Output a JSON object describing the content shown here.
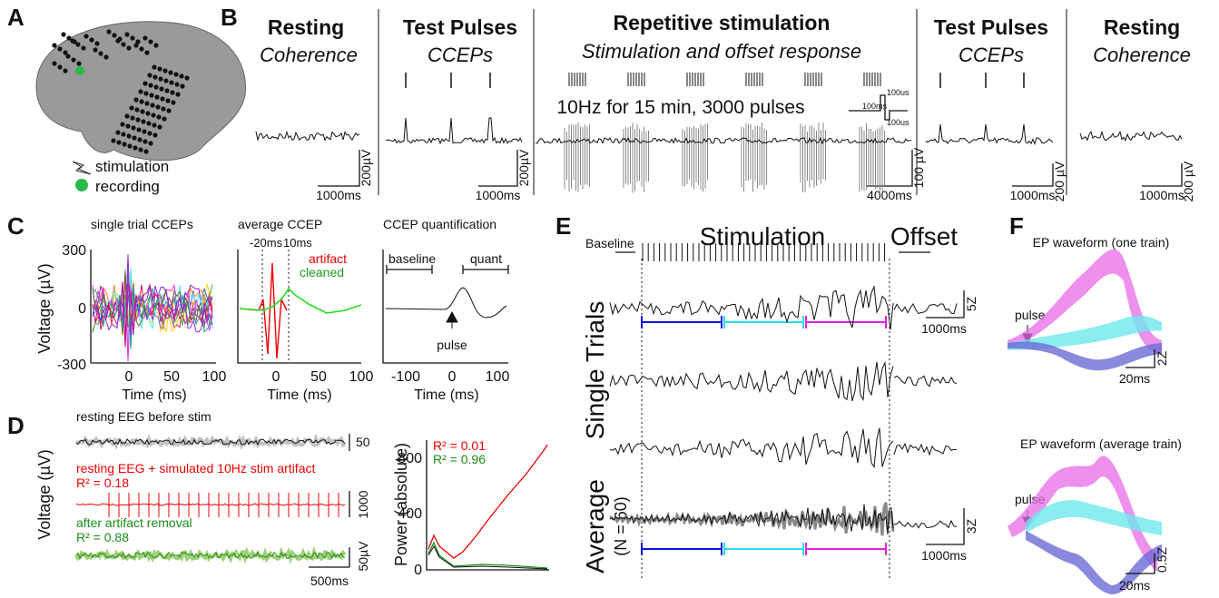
{
  "A": {
    "label": "A",
    "stimulation": "stimulation",
    "recording": "recording"
  },
  "B": {
    "label": "B",
    "resting1": {
      "title": "Resting",
      "subtitle": "Coherence",
      "scale_v": "200µV",
      "scale_t": "1000ms"
    },
    "test1": {
      "title": "Test Pulses",
      "subtitle": "CCEPs",
      "scale_v": "200µV",
      "scale_t": "1000ms"
    },
    "repetitive": {
      "title": "Repetitive stimulation",
      "subtitle": "Stimulation and offset response",
      "note": "10Hz for 15 min, 3000 pulses",
      "pulse_top": "100us",
      "pulse_mid": "100ms",
      "pulse_bottom": "100us",
      "scale_v": "100 µV",
      "scale_t": "4000ms"
    },
    "test2": {
      "title": "Test Pulses",
      "subtitle": "CCEPs",
      "scale_v": "200 µV",
      "scale_t": "1000ms"
    },
    "resting2": {
      "title": "Resting",
      "subtitle": "Coherence",
      "scale_v": "200 µV",
      "scale_t": "1000ms"
    }
  },
  "C": {
    "label": "C",
    "single": {
      "title": "single trial CCEPs",
      "ylabel": "Voltage (µV)",
      "yticks": [
        "300",
        "0",
        "-300"
      ],
      "xticks": [
        "0",
        "50",
        "100"
      ],
      "xlabel": "Time (ms)"
    },
    "average": {
      "title": "average CCEP",
      "mark1": "-20ms",
      "mark2": "10ms",
      "artifact": "artifact",
      "cleaned": "cleaned",
      "xticks": [
        "0",
        "50",
        "100"
      ],
      "xlabel": "Time (ms)"
    },
    "quant": {
      "title": "CCEP quantification",
      "baseline": "baseline",
      "quant": "quant",
      "pulse": "pulse",
      "xticks": [
        "-100",
        "0",
        "100"
      ],
      "xlabel": "Time (ms)"
    }
  },
  "D": {
    "label": "D",
    "ylabel": "Voltage (µV)",
    "trace1": "resting EEG before stim",
    "scale1": "50",
    "trace2": "resting EEG + simulated 10Hz stim artifact",
    "r2_2": "R² = 0.18",
    "scale2": "1000",
    "trace3": "after artifact removal",
    "r2_3": "R² = 0.88",
    "scale3": "50µV",
    "scale_t": "500ms",
    "power": {
      "ylabel": "Power (absolute)",
      "yticks": [
        "800",
        "400",
        "0"
      ],
      "r2_red": "R² = 0.01",
      "r2_green": "R² = 0.96"
    }
  },
  "E": {
    "label": "E",
    "baseline": "Baseline",
    "stimulation": "Stimulation",
    "offset": "Offset",
    "single": "Single Trials",
    "scale_v1": "5Z",
    "scale_t1": "1000ms",
    "average": "Average",
    "n": "(N = 60)",
    "scale_v2": "3Z",
    "scale_t2": "1000ms"
  },
  "F": {
    "label": "F",
    "title1": "EP waveform (one train)",
    "pulse1": "pulse",
    "scale_v1": "2Z",
    "scale_t1": "20ms",
    "title2": "EP waveform (average train)",
    "pulse2": "pulse",
    "scale_v2": "0.5Z",
    "scale_t2": "20ms"
  }
}
